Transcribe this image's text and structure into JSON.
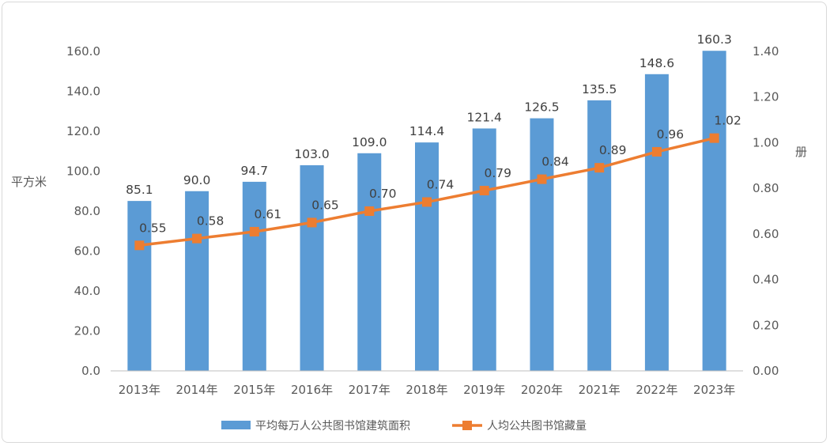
{
  "chart_data": {
    "type": "bar",
    "categories": [
      "2013年",
      "2014年",
      "2015年",
      "2016年",
      "2017年",
      "2018年",
      "2019年",
      "2020年",
      "2021年",
      "2022年",
      "2023年"
    ],
    "series": [
      {
        "name": "平均每万人公共图书馆建筑面积",
        "type": "bar",
        "axis": "left",
        "color": "#5b9bd5",
        "values": [
          85.1,
          90.0,
          94.7,
          103.0,
          109.0,
          114.4,
          121.4,
          126.5,
          135.5,
          148.6,
          160.3
        ],
        "labels": [
          "85.1",
          "90.0",
          "94.7",
          "103.0",
          "109.0",
          "114.4",
          "121.4",
          "126.5",
          "135.5",
          "148.6",
          "160.3"
        ]
      },
      {
        "name": "人均公共图书馆藏量",
        "type": "line",
        "axis": "right",
        "color": "#ed7d31",
        "values": [
          0.55,
          0.58,
          0.61,
          0.65,
          0.7,
          0.74,
          0.79,
          0.84,
          0.89,
          0.96,
          1.02
        ],
        "labels": [
          "0.55",
          "0.58",
          "0.61",
          "0.65",
          "0.70",
          "0.74",
          "0.79",
          "0.84",
          "0.89",
          "0.96",
          "1.02"
        ]
      }
    ],
    "ylabel_left": "平方米",
    "ylabel_right": "册",
    "ylim_left": [
      0,
      160
    ],
    "ylim_right": [
      0,
      1.4
    ],
    "yticks_left": [
      "0.0",
      "20.0",
      "40.0",
      "60.0",
      "80.0",
      "100.0",
      "120.0",
      "140.0",
      "160.0"
    ],
    "yticks_right": [
      "0.00",
      "0.20",
      "0.40",
      "0.60",
      "0.80",
      "1.00",
      "1.20",
      "1.40"
    ],
    "grid": false,
    "legend_position": "bottom"
  }
}
